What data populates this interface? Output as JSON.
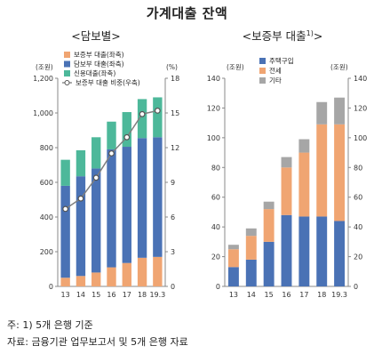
{
  "title": "가계대출 잔액",
  "notes": {
    "note1": "주: 1) 5개 은행 기준",
    "source": "자료: 금융기관 업무보고서 및 5개 은행 자료"
  },
  "colors": {
    "blue": "#4a72b5",
    "orange": "#f0a572",
    "green": "#4db89a",
    "gray": "#a6a6a6",
    "line": "#7f7f7f"
  },
  "chart_data": [
    {
      "type": "bar",
      "stacked": true,
      "title": "<담보별>",
      "categories": [
        "13",
        "14",
        "15",
        "16",
        "17",
        "18",
        "19.3"
      ],
      "left_axis_unit": "(조원)",
      "right_axis_unit": "(%)",
      "ylim": [
        0,
        1200
      ],
      "yticks": [
        0,
        200,
        400,
        600,
        800,
        1000,
        1200
      ],
      "y2lim": [
        0,
        18
      ],
      "y2ticks": [
        0,
        3,
        6,
        9,
        12,
        15,
        18
      ],
      "series": [
        {
          "name": "보증부 대출(좌축)",
          "color": "#f0a572",
          "values": [
            50,
            60,
            80,
            110,
            135,
            165,
            170
          ]
        },
        {
          "name": "담보부 대출(좌축)",
          "color": "#4a72b5",
          "values": [
            530,
            575,
            600,
            680,
            670,
            690,
            690
          ]
        },
        {
          "name": "신용대출(좌축)",
          "color": "#4db89a",
          "values": [
            150,
            150,
            180,
            160,
            200,
            225,
            230
          ]
        }
      ],
      "line_series": {
        "name": "보증부 대출 비중(우축)",
        "axis": "right",
        "color": "#7f7f7f",
        "values": [
          6.7,
          7.6,
          9.4,
          11.5,
          12.9,
          14.9,
          15.2
        ]
      },
      "legend_position": "top-left"
    },
    {
      "type": "bar",
      "stacked": true,
      "title": "<보증부 대출",
      "title_sup": "1)",
      "title_suffix": ">",
      "categories": [
        "13",
        "14",
        "15",
        "16",
        "17",
        "18",
        "19.3"
      ],
      "left_axis_unit": "(조원)",
      "right_axis_unit": "(조원)",
      "ylim": [
        0,
        140
      ],
      "yticks": [
        0,
        20,
        40,
        60,
        80,
        100,
        120,
        140
      ],
      "y2lim": [
        0,
        140
      ],
      "y2ticks": [
        0,
        20,
        40,
        60,
        80,
        100,
        120,
        140
      ],
      "series": [
        {
          "name": "주택구입",
          "color": "#4a72b5",
          "values": [
            13,
            18,
            30,
            48,
            47,
            47,
            44
          ]
        },
        {
          "name": "전세",
          "color": "#f0a572",
          "values": [
            12,
            16,
            22,
            32,
            43,
            62,
            65
          ]
        },
        {
          "name": "기타",
          "color": "#a6a6a6",
          "values": [
            3,
            5,
            5,
            7,
            9,
            15,
            18
          ]
        }
      ],
      "legend_position": "top-left"
    }
  ]
}
